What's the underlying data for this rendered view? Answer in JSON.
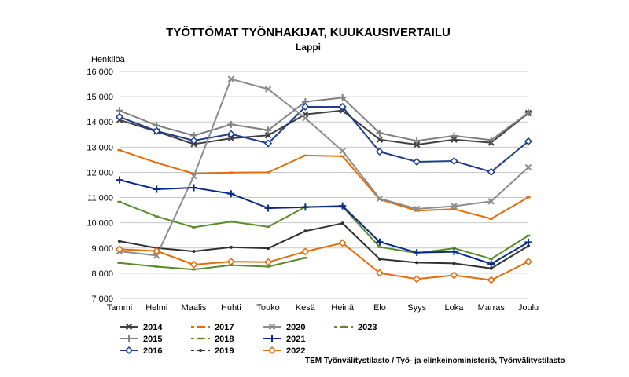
{
  "chart_data": {
    "type": "line",
    "title": "TYÖTTÖMAT TYÖNHAKIJAT, KUUKAUSIVERTAILU",
    "subtitle": "Lappi",
    "ylabel": "Henkilöä",
    "xlabel": "",
    "ylim": [
      7000,
      16000
    ],
    "yticks": [
      7000,
      8000,
      9000,
      10000,
      11000,
      12000,
      13000,
      14000,
      15000,
      16000
    ],
    "ytick_labels": [
      "7 000",
      "8 000",
      "9 000",
      "10 000",
      "11 000",
      "12 000",
      "13 000",
      "14 000",
      "15 000",
      "16 000"
    ],
    "grid": true,
    "legend_position": "bottom-left",
    "categories": [
      "Tammi",
      "Helmi",
      "Maalis",
      "Huhti",
      "Touko",
      "Kesä",
      "Heinä",
      "Elo",
      "Syys",
      "Loka",
      "Marras",
      "Joulu"
    ],
    "series": [
      {
        "name": "2014",
        "color": "#404040",
        "marker": "x",
        "dashed": false,
        "values": [
          14080,
          13620,
          13120,
          13350,
          13470,
          14300,
          14450,
          13300,
          13100,
          13300,
          13180,
          14350
        ]
      },
      {
        "name": "2015",
        "color": "#808080",
        "marker": "plus",
        "dashed": false,
        "values": [
          14450,
          13860,
          13460,
          13900,
          13670,
          14800,
          14960,
          13560,
          13250,
          13450,
          13280,
          14360
        ]
      },
      {
        "name": "2016",
        "color": "#1f3d8c",
        "marker": "diamond",
        "dashed": false,
        "values": [
          14200,
          13640,
          13260,
          13520,
          13150,
          14600,
          14600,
          12820,
          12420,
          12450,
          12020,
          13230
        ]
      },
      {
        "name": "2017",
        "color": "#e36c09",
        "marker": "dash",
        "dashed": true,
        "values": [
          12880,
          12380,
          11950,
          11990,
          12000,
          12670,
          12640,
          10930,
          10480,
          10540,
          10160,
          11010
        ]
      },
      {
        "name": "2018",
        "color": "#5a8a2a",
        "marker": "dash",
        "dashed": true,
        "values": [
          10830,
          10250,
          9820,
          10050,
          9840,
          10630,
          10640,
          9040,
          8800,
          8990,
          8570,
          9490
        ]
      },
      {
        "name": "2019",
        "color": "#303030",
        "marker": "dot",
        "dashed": true,
        "values": [
          9270,
          9000,
          8870,
          9030,
          8990,
          9670,
          9980,
          8560,
          8420,
          8390,
          8190,
          9080
        ]
      },
      {
        "name": "2020",
        "color": "#8c8c8c",
        "marker": "x",
        "dashed": false,
        "values": [
          8870,
          8700,
          11850,
          15700,
          15300,
          14150,
          12850,
          10960,
          10550,
          10660,
          10850,
          12200
        ]
      },
      {
        "name": "2021",
        "color": "#0a2a8a",
        "marker": "plus",
        "dashed": false,
        "values": [
          11700,
          11330,
          11390,
          11150,
          10580,
          10620,
          10670,
          9240,
          8820,
          8850,
          8370,
          9230
        ]
      },
      {
        "name": "2022",
        "color": "#e36c09",
        "marker": "diamond",
        "dashed": false,
        "values": [
          8950,
          8880,
          8340,
          8460,
          8440,
          8860,
          9200,
          8010,
          7770,
          7920,
          7730,
          8460
        ]
      },
      {
        "name": "2023",
        "color": "#5a8a2a",
        "marker": "dash",
        "dashed": true,
        "values": [
          8410,
          8260,
          8150,
          8320,
          8260,
          8610,
          null,
          null,
          null,
          null,
          null,
          null
        ]
      }
    ],
    "legend_rows": [
      [
        "2014",
        "2017",
        "2020",
        "2023"
      ],
      [
        "2015",
        "2018",
        "2021"
      ],
      [
        "2016",
        "2019",
        "2022"
      ]
    ],
    "source": "TEM Työnvälitystilasto / Työ- ja elinkeinoministeriö, Työnvälitystilasto"
  }
}
